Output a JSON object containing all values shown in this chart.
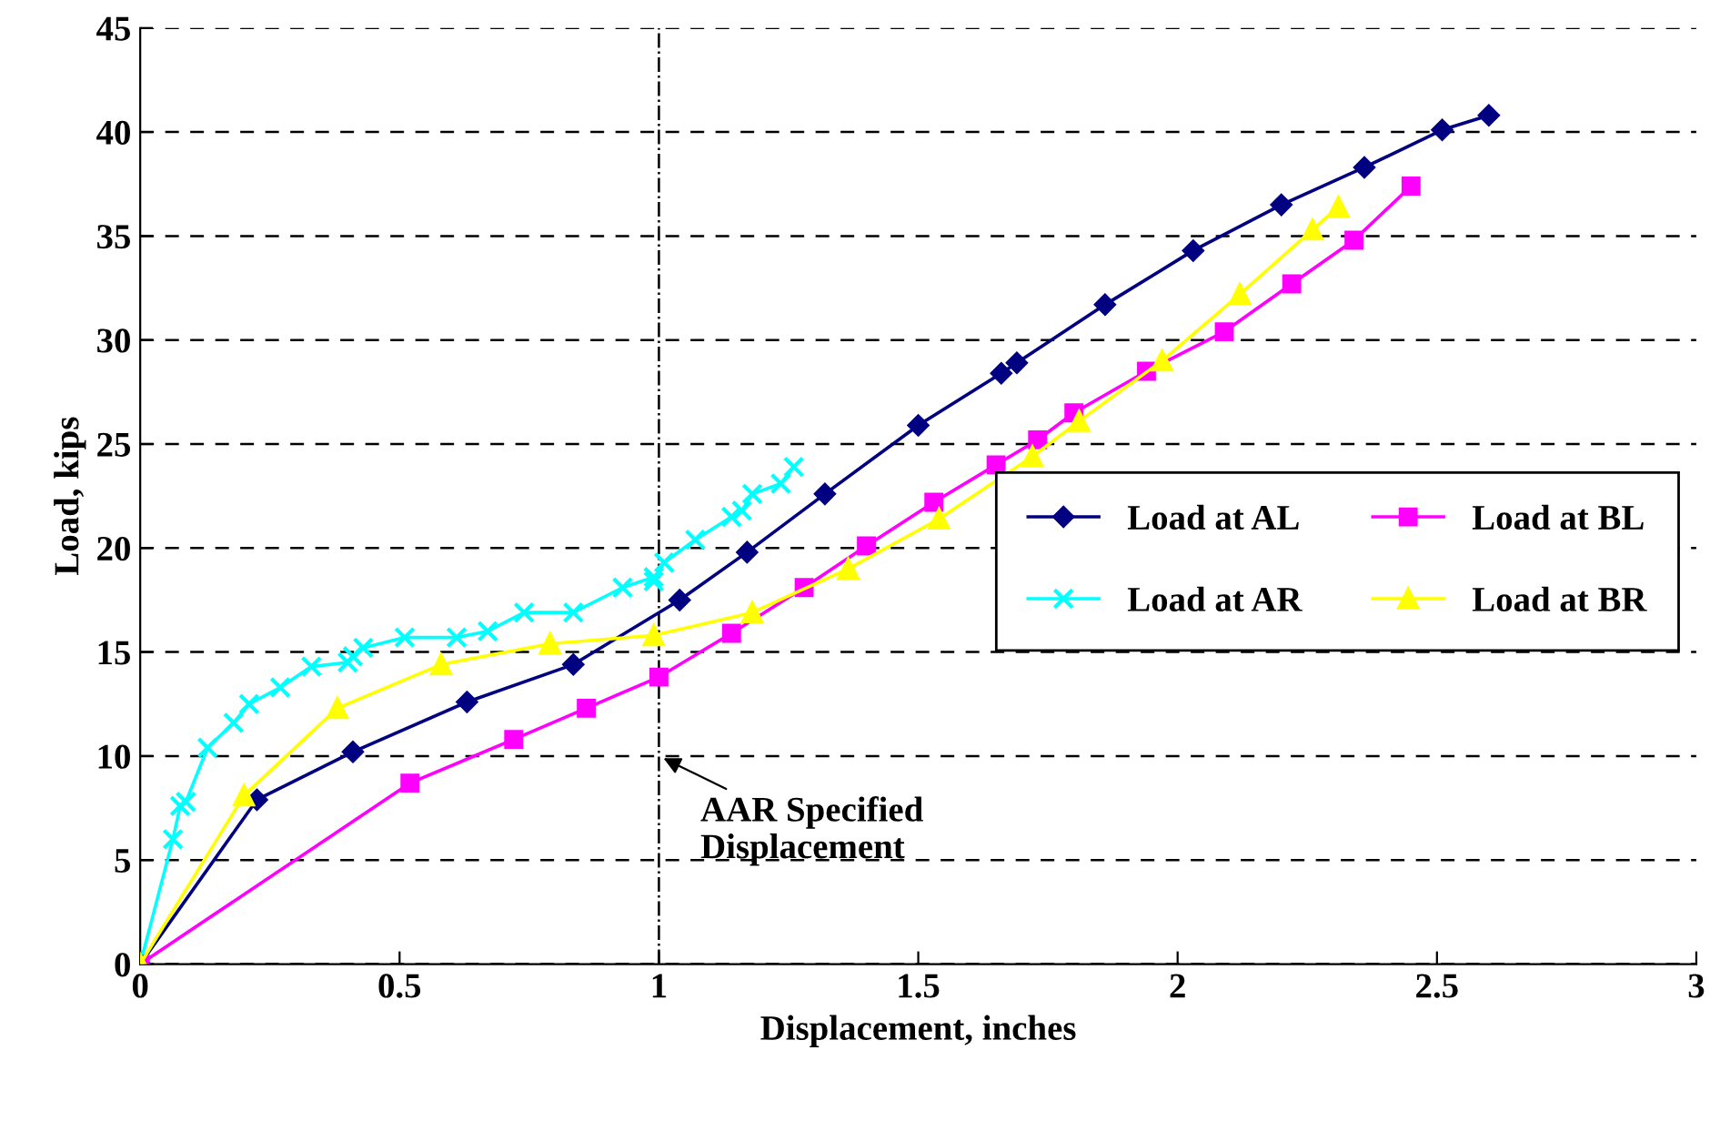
{
  "chart_data": {
    "type": "line",
    "xlabel": "Displacement, inches",
    "ylabel": "Load, kips",
    "xlim": [
      0,
      3
    ],
    "xticks": [
      0,
      0.5,
      1,
      1.5,
      2,
      2.5,
      3
    ],
    "ylim": [
      0,
      45
    ],
    "yticks": [
      0,
      5,
      10,
      15,
      20,
      25,
      30,
      35,
      40,
      45
    ],
    "grid": "y",
    "legend": "right",
    "series": [
      {
        "name": "Load at AL",
        "color": "#000080",
        "marker": "diamond",
        "x": [
          0,
          0.225,
          0.41,
          0.63,
          0.835,
          1.04,
          1.17,
          1.32,
          1.5,
          1.66,
          1.69,
          1.86,
          2.03,
          2.2,
          2.36,
          2.51,
          2.6
        ],
        "values": [
          0,
          7.9,
          10.2,
          12.6,
          14.4,
          17.5,
          19.8,
          22.6,
          25.9,
          28.4,
          28.9,
          31.7,
          34.3,
          36.5,
          38.3,
          40.1,
          40.8
        ]
      },
      {
        "name": "Load at AR",
        "color": "#00ffff",
        "marker": "cross",
        "x": [
          0,
          0.063,
          0.077,
          0.088,
          0.13,
          0.18,
          0.21,
          0.27,
          0.33,
          0.4,
          0.41,
          0.43,
          0.51,
          0.61,
          0.67,
          0.74,
          0.835,
          0.93,
          0.99,
          0.99,
          1.01,
          1.07,
          1.14,
          1.16,
          1.18,
          1.235,
          1.26
        ],
        "values": [
          0,
          6.0,
          7.6,
          7.8,
          10.4,
          11.6,
          12.5,
          13.3,
          14.3,
          14.5,
          14.8,
          15.2,
          15.7,
          15.7,
          16.0,
          16.9,
          16.9,
          18.1,
          18.6,
          18.4,
          19.3,
          20.4,
          21.5,
          21.8,
          22.6,
          23.1,
          23.9
        ]
      },
      {
        "name": "Load at BL",
        "color": "#ff00ff",
        "marker": "square",
        "x": [
          0,
          0.52,
          0.72,
          0.86,
          1.0,
          1.14,
          1.28,
          1.4,
          1.53,
          1.65,
          1.73,
          1.8,
          1.94,
          2.09,
          2.22,
          2.34,
          2.45
        ],
        "values": [
          0,
          8.7,
          10.8,
          12.3,
          13.8,
          15.9,
          18.1,
          20.1,
          22.2,
          24.0,
          25.2,
          26.5,
          28.5,
          30.4,
          32.7,
          34.8,
          37.4
        ]
      },
      {
        "name": "Load at BR",
        "color": "#ffff00",
        "marker": "triangle",
        "x": [
          0,
          0.2,
          0.38,
          0.58,
          0.79,
          0.99,
          1.18,
          1.365,
          1.54,
          1.72,
          1.81,
          1.97,
          2.12,
          2.26,
          2.31
        ],
        "values": [
          0,
          8.1,
          12.3,
          14.4,
          15.4,
          15.8,
          16.9,
          19.0,
          21.4,
          24.4,
          26.1,
          29.0,
          32.2,
          35.3,
          36.4
        ]
      }
    ],
    "ref_lines": [
      {
        "axis": "x",
        "value": 1,
        "color": "#000000",
        "line_style": "dashdot"
      }
    ],
    "annotations": [
      {
        "text": "AAR Specified\nDisplacement",
        "x": 1,
        "y": 10
      }
    ]
  }
}
